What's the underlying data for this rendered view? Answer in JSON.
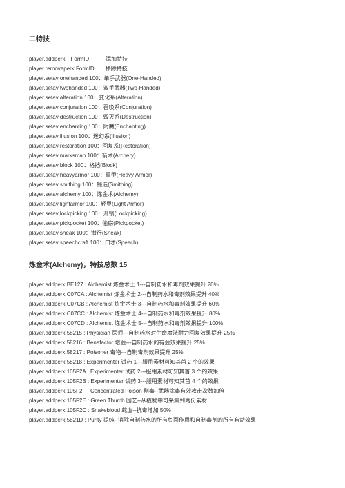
{
  "title1": "二特技",
  "commands1": [
    "player.addperk　FormID　　　添加特技",
    "player.removeperk FormID　　移除特技",
    "player.setav onehanded 100：单手武器(One-Handed)",
    "player.setav twohanded 100：双手武器(Two-Handed)",
    "player.setav alteration 100：变化系(Alteration)",
    "player.setav conjuration 100：召唤系(Conjuration)",
    "player.setav destruction 100：毁灭系(Destruction)",
    "player.setav enchanting 100：附魔(Enchanting)",
    "player.setav illusion 100：迷幻系(Illusion)",
    "player.setav restoration 100：回复系(Restoration)",
    "player.setav marksman 100：箭术(Archery)",
    "player.setav block 100：格挡(Block)",
    "player.setav heavyarmor 100：重甲(Heavy Armor)",
    "player.setav smithing 100：锻造(Smithing)",
    "player.setav alchemy 100：炼金术(Alchemy)",
    "player.setav lightarmor 100：轻甲(Light Armor)",
    "player.setav lockpicking 100：开锁(Lockpicking)",
    "player.setav pickpocket 100：偷窃(Pickpocket)",
    "player.setav sneak 100：潜行(Sneak)",
    "player.setav speechcraft 100：口才(Speech)"
  ],
  "title2": "炼金术(Alchemy)，特技总数 15",
  "commands2": [
    "player.addperk BE127 : Alchemist 炼金术士 1---自制药水和毒剂效果提升 20%",
    "player.addperk C07CA : Alchemist 炼金术士 2---自制药水和毒剂效果提升 40%",
    "player.addperk C07CB : Alchemist 炼金术士 3---自制药水和毒剂效果提升 60%",
    "player.addperk C07CC : Alchemist 炼金术士 4---自制药水和毒剂效果提升 80%",
    "player.addperk C07CD : Alchemist 炼金术士 5---自制药水和毒剂效果提升 100%",
    "player.addperk 58215 : Physician 医师---自制药水对生命魔法耐力回复效果提升 25%",
    "player.addperk 58216 : Benefactor 增益---自制药水的有益效果提升 25%",
    "player.addperk 58217 : Poisoner 毒物---自制毒剂效果提升 25%",
    "player.addperk 58218 : Experimenter 试药 1---服用素材可知其首 2 个的效果",
    "player.addperk 105F2A : Experimenter 试药 2---服用素材可知其首 3 个的效果",
    "player.addperk 105F2B : Experimenter 试药 3---服用素材可知其首 4 个的效果",
    "player.addperk 105F2F : Concentrated Poison 剧毒--武器涂毒有效攻击次数加倍",
    "player.addperk 105F2E : Green Thumb 园艺--从植物中可采集到两份素材",
    "player.addperk 105F2C : Snakeblood 蛇血--抗毒增加 50%",
    "player.addperk 5821D : Purity 提纯--消除自制药水的所有负面作用和自制毒剂的所有有益效果"
  ]
}
